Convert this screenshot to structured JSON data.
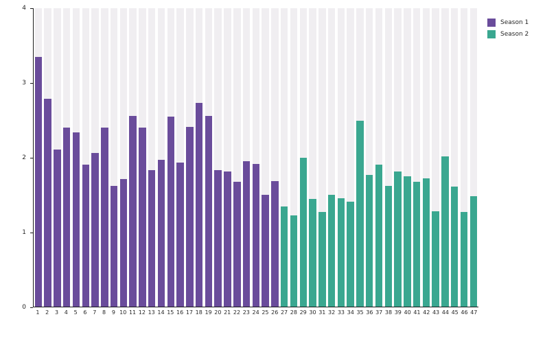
{
  "chart_data": {
    "type": "bar",
    "title": "",
    "xlabel": "",
    "ylabel": "",
    "ylim": [
      0,
      4
    ],
    "yticks": [
      "0",
      "1",
      "2",
      "3",
      "4"
    ],
    "grid": false,
    "background_band_color": "#f0eef1",
    "axis_color": "#1a1a1a",
    "tick_text_color": "#262626",
    "legend_position": "top-right-outside",
    "categories": [
      "1",
      "2",
      "3",
      "4",
      "5",
      "6",
      "7",
      "8",
      "9",
      "10",
      "11",
      "12",
      "13",
      "14",
      "15",
      "16",
      "17",
      "18",
      "19",
      "20",
      "21",
      "22",
      "23",
      "24",
      "25",
      "26",
      "27",
      "28",
      "29",
      "30",
      "31",
      "32",
      "33",
      "34",
      "35",
      "36",
      "37",
      "38",
      "39",
      "40",
      "41",
      "42",
      "43",
      "44",
      "45",
      "46",
      "47"
    ],
    "series": [
      {
        "name": "Season 1",
        "color": "#6a4c9b",
        "categories": [
          "1",
          "2",
          "3",
          "4",
          "5",
          "6",
          "7",
          "8",
          "9",
          "10",
          "11",
          "12",
          "13",
          "14",
          "15",
          "16",
          "17",
          "18",
          "19",
          "20",
          "21",
          "22",
          "23",
          "24",
          "25",
          "26"
        ],
        "values": [
          3.35,
          2.79,
          2.11,
          2.4,
          2.34,
          1.9,
          2.06,
          2.4,
          1.62,
          1.71,
          2.56,
          2.4,
          1.83,
          1.97,
          2.55,
          1.93,
          2.41,
          2.73,
          2.56,
          1.83,
          1.81,
          1.67,
          1.95,
          1.91,
          1.5,
          1.68
        ]
      },
      {
        "name": "Season 2",
        "color": "#3aa790",
        "categories": [
          "27",
          "28",
          "29",
          "30",
          "31",
          "32",
          "33",
          "34",
          "35",
          "36",
          "37",
          "38",
          "39",
          "40",
          "41",
          "42",
          "43",
          "44",
          "45",
          "46",
          "47"
        ],
        "values": [
          1.34,
          1.22,
          2.0,
          1.44,
          1.27,
          1.5,
          1.45,
          1.41,
          2.49,
          1.77,
          1.9,
          1.62,
          1.81,
          1.75,
          1.67,
          1.72,
          1.28,
          2.01,
          1.61,
          1.27,
          1.48
        ]
      }
    ]
  }
}
